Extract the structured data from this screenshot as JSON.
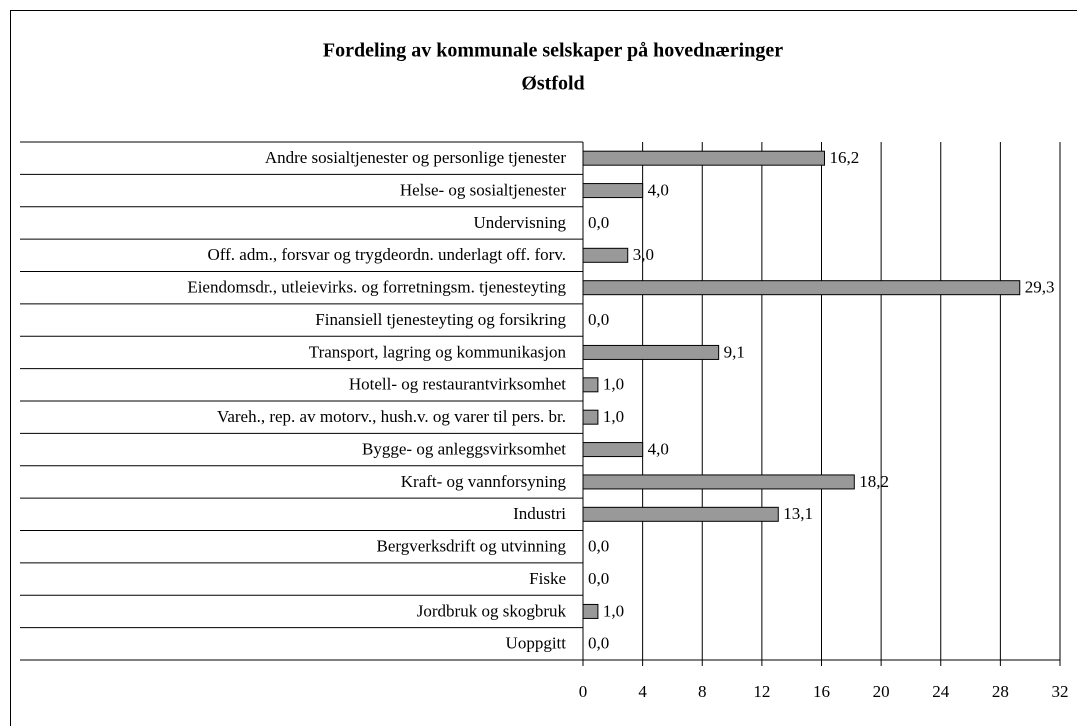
{
  "chart_data": {
    "type": "barh",
    "title": "Fordeling av kommunale selskaper på hovednæringer",
    "subtitle": "Østfold",
    "categories": [
      "Andre sosialtjenester og personlige tjenester",
      "Helse- og sosialtjenester",
      "Undervisning",
      "Off. adm., forsvar og trygdeordn. underlagt off. forv.",
      "Eiendomsdr., utleievirks. og forretningsm. tjenesteyting",
      "Finansiell tjenesteyting og forsikring",
      "Transport, lagring og kommunikasjon",
      "Hotell- og restaurantvirksomhet",
      "Vareh., rep. av motorv., hush.v. og varer til pers. br.",
      "Bygge- og anleggsvirksomhet",
      "Kraft- og vannforsyning",
      "Industri",
      "Bergverksdrift og utvinning",
      "Fiske",
      "Jordbruk og skogbruk",
      "Uoppgitt"
    ],
    "values": [
      16.2,
      4.0,
      0.0,
      3.0,
      29.3,
      0.0,
      9.1,
      1.0,
      1.0,
      4.0,
      18.2,
      13.1,
      0.0,
      0.0,
      1.0,
      0.0
    ],
    "value_labels": [
      "16,2",
      "4,0",
      "0,0",
      "3,0",
      "29,3",
      "0,0",
      "9,1",
      "1,0",
      "1,0",
      "4,0",
      "18,2",
      "13,1",
      "0,0",
      "0,0",
      "1,0",
      "0,0"
    ],
    "color": "#999999",
    "xlim": [
      0,
      32
    ],
    "xticks": [
      0,
      4,
      8,
      12,
      16,
      20,
      24,
      28,
      32
    ],
    "grid": true
  }
}
